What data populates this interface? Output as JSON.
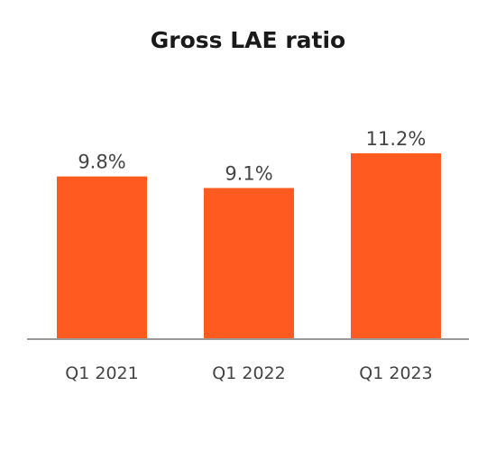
{
  "chart_data": {
    "type": "bar",
    "title": "Gross LAE ratio",
    "categories": [
      "Q1 2021",
      "Q1 2022",
      "Q1 2023"
    ],
    "values": [
      9.8,
      9.1,
      11.2
    ],
    "value_labels": [
      "9.8%",
      "9.1%",
      "11.2%"
    ],
    "xlabel": "",
    "ylabel": "",
    "ylim": [
      0,
      11.2
    ],
    "grid": false,
    "bar_color": "#ff5a1f",
    "axis_color": "#9a9a9a"
  }
}
